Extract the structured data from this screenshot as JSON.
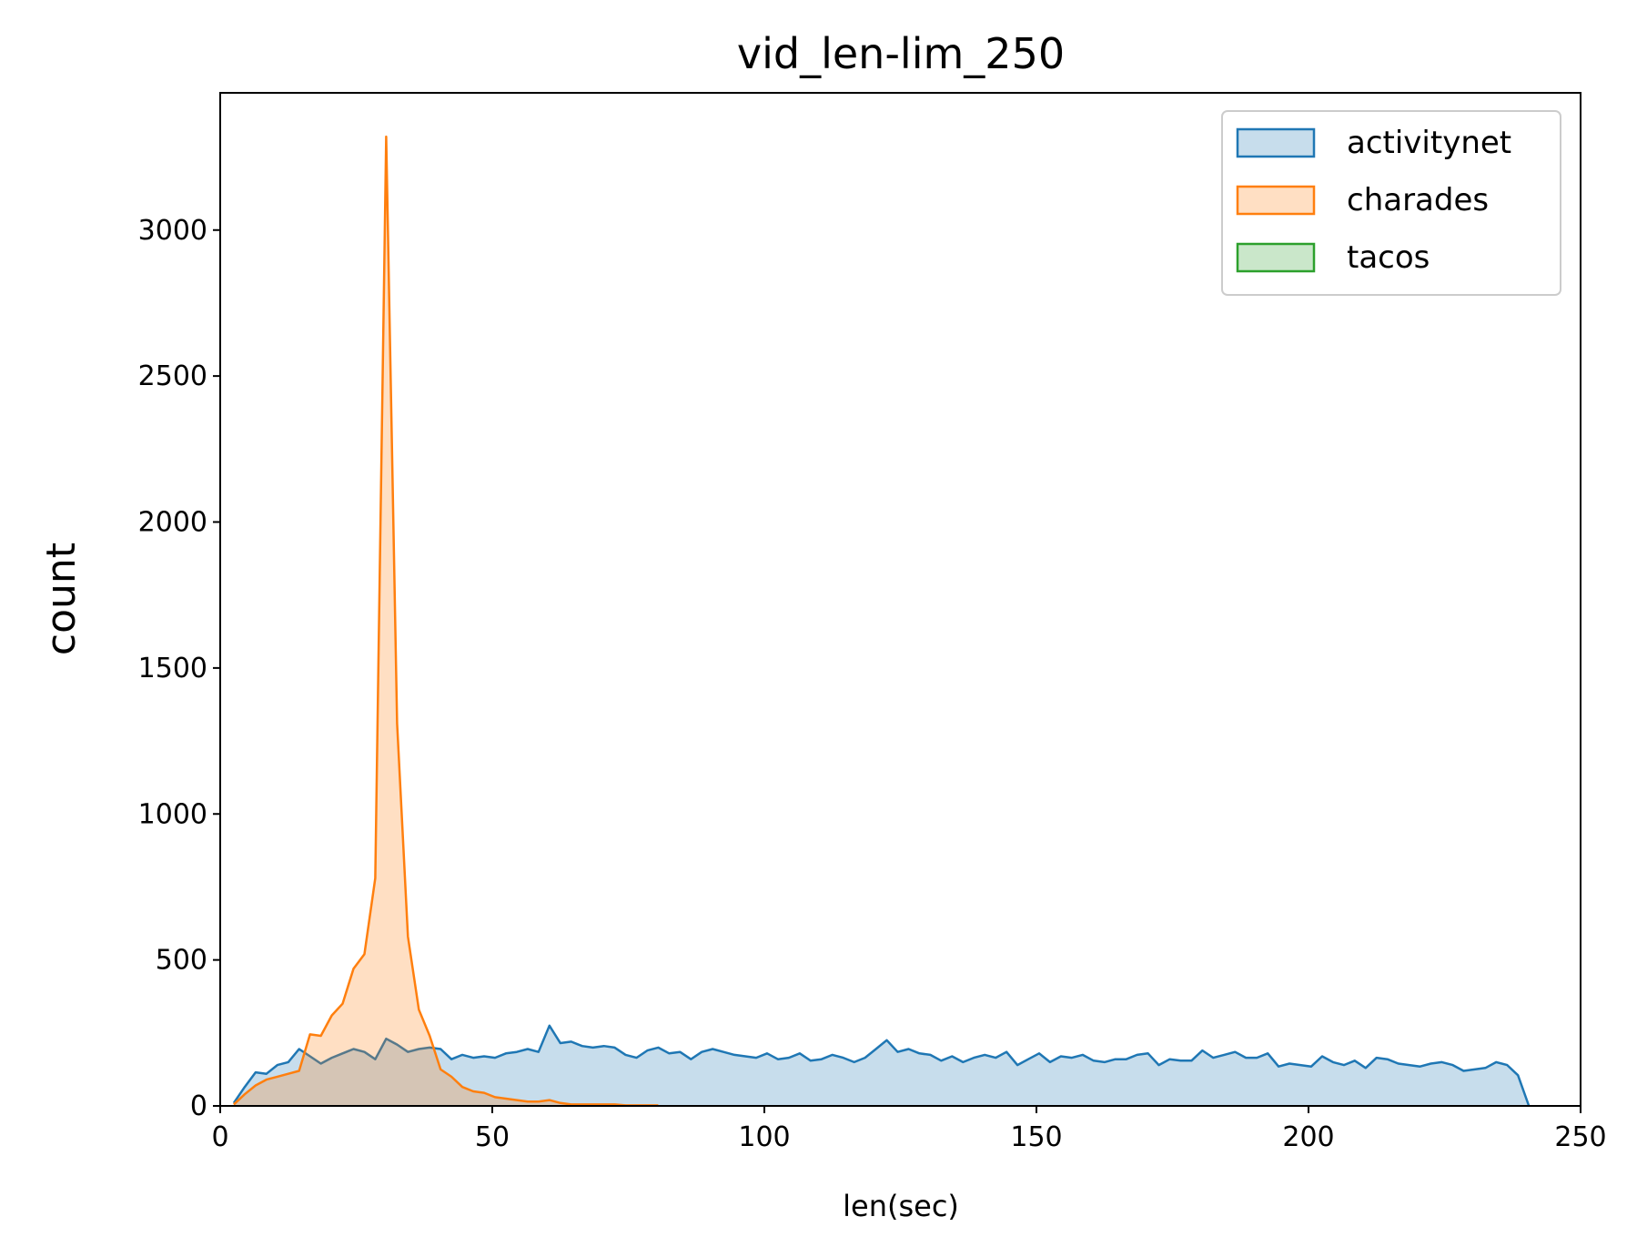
{
  "chart_data": {
    "type": "area",
    "title": "vid_len-lim_250",
    "xlabel": "len(sec)",
    "ylabel": "count",
    "xlim": [
      0,
      250
    ],
    "ylim": [
      0,
      3470
    ],
    "xticks": [
      "0",
      "50",
      "100",
      "150",
      "200",
      "250"
    ],
    "yticks": [
      "0",
      "500",
      "1000",
      "1500",
      "2000",
      "2500",
      "3000"
    ],
    "legend_position": "top-right",
    "grid": false,
    "series": [
      {
        "name": "activitynet",
        "color": "#1f77b4",
        "x": [
          2.5,
          4.5,
          6.5,
          8.5,
          10.5,
          12.5,
          14.5,
          16.5,
          18.5,
          20.5,
          22.5,
          24.5,
          26.5,
          28.5,
          30.5,
          32.5,
          34.5,
          36.5,
          38.5,
          40.5,
          42.5,
          44.5,
          46.5,
          48.5,
          50.5,
          52.5,
          54.5,
          56.5,
          58.5,
          60.5,
          62.5,
          64.5,
          66.5,
          68.5,
          70.5,
          72.5,
          74.5,
          76.5,
          78.5,
          80.5,
          82.5,
          84.5,
          86.5,
          88.5,
          90.5,
          92.5,
          94.5,
          96.5,
          98.5,
          100.5,
          102.5,
          104.5,
          106.5,
          108.5,
          110.5,
          112.5,
          114.5,
          116.5,
          118.5,
          120.5,
          122.5,
          124.5,
          126.5,
          128.5,
          130.5,
          132.5,
          134.5,
          136.5,
          138.5,
          140.5,
          142.5,
          144.5,
          146.5,
          148.5,
          150.5,
          152.5,
          154.5,
          156.5,
          158.5,
          160.5,
          162.5,
          164.5,
          166.5,
          168.5,
          170.5,
          172.5,
          174.5,
          176.5,
          178.5,
          180.5,
          182.5,
          184.5,
          186.5,
          188.5,
          190.5,
          192.5,
          194.5,
          196.5,
          198.5,
          200.5,
          202.5,
          204.5,
          206.5,
          208.5,
          210.5,
          212.5,
          214.5,
          216.5,
          218.5,
          220.5,
          222.5,
          224.5,
          226.5,
          228.5,
          230.5,
          232.5,
          234.5,
          236.5,
          238.5,
          240.5
        ],
        "y": [
          10,
          65,
          115,
          110,
          140,
          150,
          195,
          170,
          145,
          165,
          180,
          195,
          185,
          160,
          230,
          210,
          185,
          195,
          200,
          195,
          160,
          175,
          165,
          170,
          165,
          180,
          185,
          195,
          185,
          275,
          215,
          220,
          205,
          200,
          205,
          200,
          175,
          165,
          190,
          200,
          180,
          185,
          160,
          185,
          195,
          185,
          175,
          170,
          165,
          180,
          160,
          165,
          180,
          155,
          160,
          175,
          165,
          150,
          165,
          195,
          225,
          185,
          195,
          180,
          175,
          155,
          170,
          150,
          165,
          175,
          165,
          185,
          140,
          160,
          180,
          150,
          170,
          165,
          175,
          155,
          150,
          160,
          160,
          175,
          180,
          140,
          160,
          155,
          155,
          190,
          165,
          175,
          185,
          165,
          165,
          180,
          135,
          145,
          140,
          135,
          170,
          150,
          140,
          155,
          130,
          165,
          160,
          145,
          140,
          135,
          145,
          150,
          140,
          120,
          125,
          130,
          150,
          140,
          105,
          0
        ]
      },
      {
        "name": "charades",
        "color": "#ff7f0e",
        "x": [
          2.5,
          4.5,
          6.5,
          8.5,
          10.5,
          12.5,
          14.5,
          16.5,
          18.5,
          20.5,
          22.5,
          24.5,
          26.5,
          28.5,
          30.5,
          32.5,
          34.5,
          36.5,
          38.5,
          40.5,
          42.5,
          44.5,
          46.5,
          48.5,
          50.5,
          52.5,
          54.5,
          56.5,
          58.5,
          60.5,
          62.5,
          64.5,
          66.5,
          68.5,
          70.5,
          72.5,
          74.5,
          76.5,
          78.5,
          80.5
        ],
        "y": [
          5,
          40,
          70,
          90,
          100,
          110,
          120,
          245,
          240,
          310,
          350,
          470,
          520,
          780,
          3320,
          1310,
          580,
          330,
          240,
          125,
          100,
          65,
          50,
          45,
          30,
          25,
          20,
          15,
          15,
          20,
          10,
          5,
          5,
          5,
          5,
          5,
          2,
          2,
          2,
          2
        ]
      },
      {
        "name": "tacos",
        "color": "#2ca02c",
        "x": [],
        "y": []
      }
    ]
  }
}
